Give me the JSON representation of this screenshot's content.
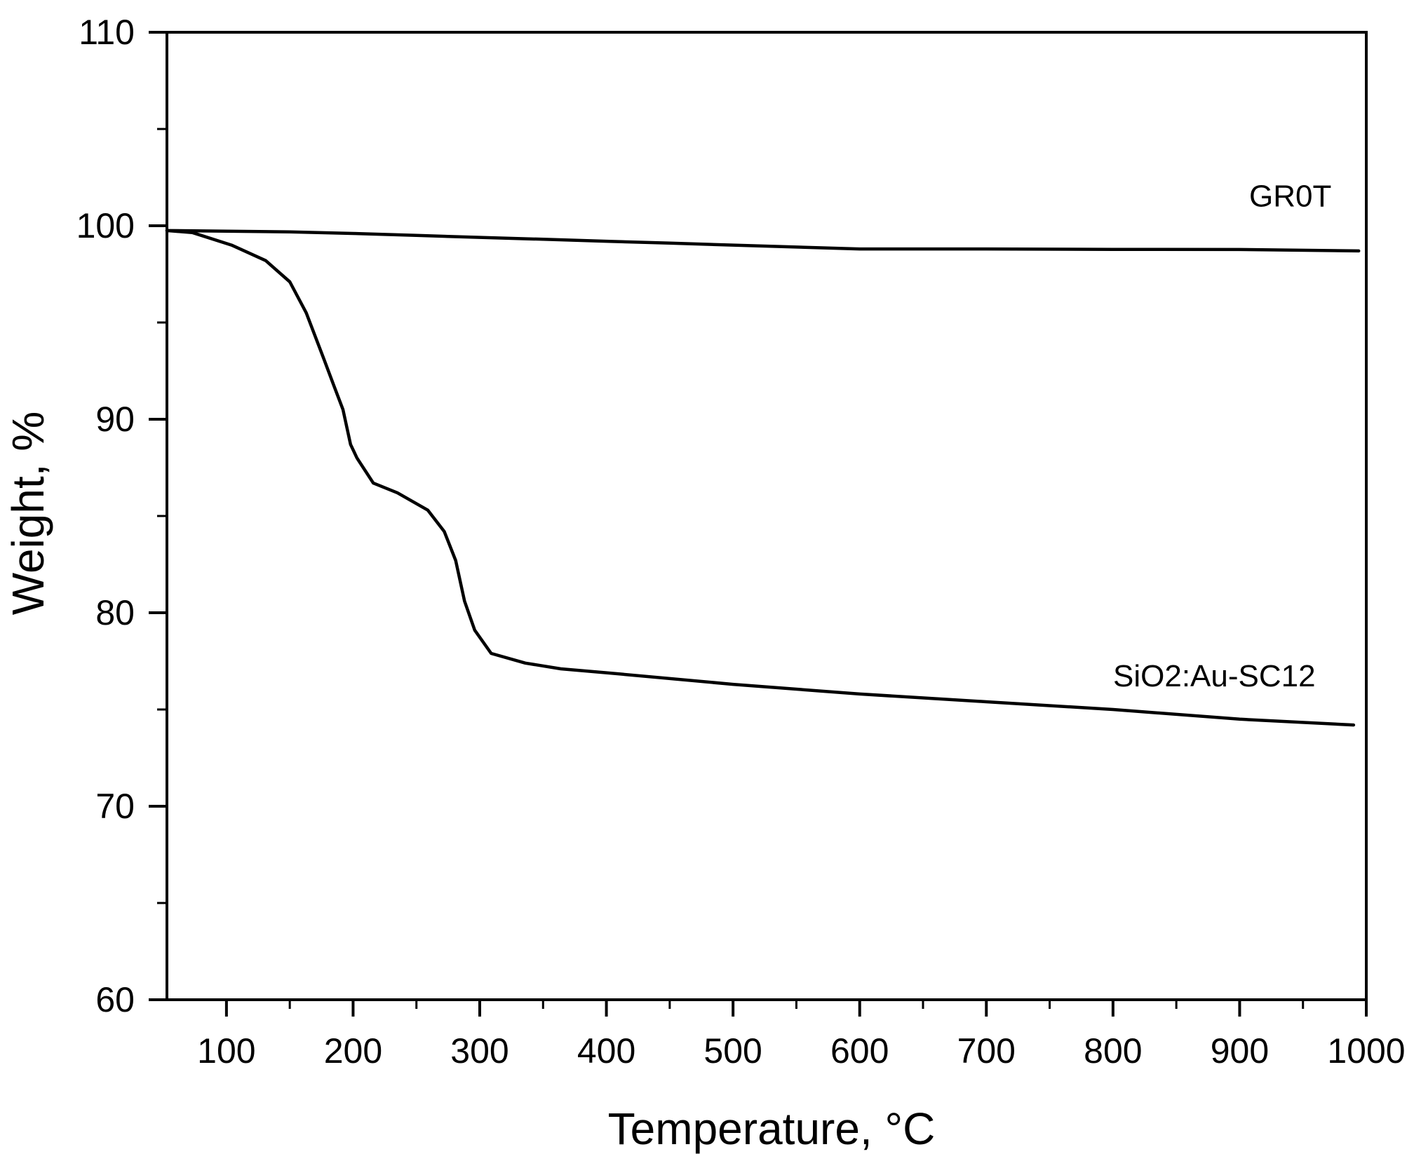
{
  "chart_data": {
    "type": "line",
    "title": "",
    "xlabel": "Temperature, °C",
    "ylabel": "Weight, %",
    "xlim": [
      53,
      1000
    ],
    "ylim": [
      60,
      110
    ],
    "grid": false,
    "legend": "inline labels",
    "x_ticks": [
      100,
      200,
      300,
      400,
      500,
      600,
      700,
      800,
      900,
      1000
    ],
    "x_minor_ticks": [
      150,
      250,
      350,
      450,
      550,
      650,
      750,
      850,
      950
    ],
    "y_ticks": [
      60,
      70,
      80,
      90,
      100,
      110
    ],
    "y_minor_ticks": [
      65,
      75,
      85,
      95,
      105
    ],
    "series": [
      {
        "name": "GR0T",
        "label_pos": {
          "x": 940,
          "y": 101.0
        },
        "color": "#000000",
        "points": [
          [
            53,
            99.75
          ],
          [
            100,
            99.72
          ],
          [
            150,
            99.68
          ],
          [
            200,
            99.6
          ],
          [
            250,
            99.5
          ],
          [
            300,
            99.4
          ],
          [
            350,
            99.3
          ],
          [
            400,
            99.2
          ],
          [
            450,
            99.1
          ],
          [
            500,
            99.0
          ],
          [
            550,
            98.9
          ],
          [
            600,
            98.8
          ],
          [
            700,
            98.8
          ],
          [
            800,
            98.78
          ],
          [
            900,
            98.77
          ],
          [
            994,
            98.7
          ]
        ]
      },
      {
        "name": "SiO2:Au-SC12",
        "label_pos": {
          "x": 880,
          "y": 76.2
        },
        "color": "#000000",
        "points": [
          [
            53,
            99.75
          ],
          [
            73,
            99.65
          ],
          [
            104,
            99.0
          ],
          [
            131,
            98.2
          ],
          [
            150,
            97.1
          ],
          [
            163,
            95.5
          ],
          [
            177,
            93.1
          ],
          [
            185,
            91.7
          ],
          [
            192,
            90.5
          ],
          [
            198,
            88.7
          ],
          [
            203,
            88.0
          ],
          [
            216,
            86.7
          ],
          [
            235,
            86.2
          ],
          [
            259,
            85.3
          ],
          [
            272,
            84.2
          ],
          [
            281,
            82.7
          ],
          [
            288,
            80.6
          ],
          [
            296,
            79.1
          ],
          [
            309,
            77.9
          ],
          [
            336,
            77.4
          ],
          [
            364,
            77.1
          ],
          [
            400,
            76.9
          ],
          [
            500,
            76.3
          ],
          [
            600,
            75.8
          ],
          [
            700,
            75.4
          ],
          [
            800,
            75.0
          ],
          [
            900,
            74.5
          ],
          [
            990,
            74.2
          ]
        ]
      }
    ]
  }
}
